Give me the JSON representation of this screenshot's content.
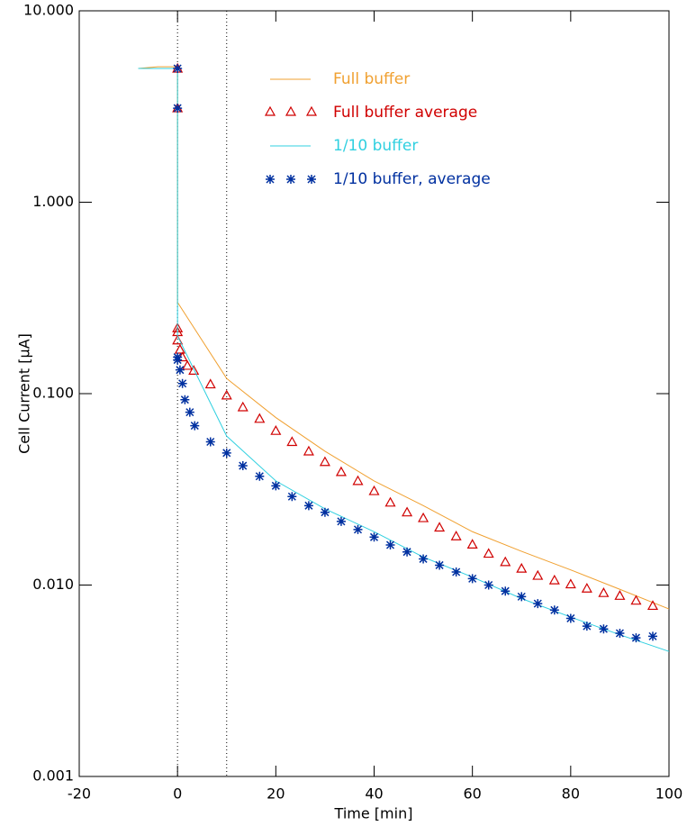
{
  "chart_data": {
    "type": "line",
    "xlabel": "Time [min]",
    "ylabel": "Cell Current [μA]",
    "log_y": true,
    "xlim": [
      -20,
      100
    ],
    "xticks": [
      -20,
      0,
      20,
      40,
      60,
      80,
      100
    ],
    "ylim": [
      0.001,
      10
    ],
    "yticks": [
      {
        "value": 10,
        "label": "10.000"
      },
      {
        "value": 1,
        "label": "1.000"
      },
      {
        "value": 0.1,
        "label": "0.100"
      },
      {
        "value": 0.01,
        "label": "0.010"
      },
      {
        "value": 0.001,
        "label": "0.001"
      }
    ],
    "reference_lines": [
      0,
      10
    ],
    "series": [
      {
        "name": "Full buffer",
        "color": "#f0a030",
        "marker": "line",
        "x": [
          -8,
          -4,
          0,
          0,
          10,
          20,
          30,
          40,
          50,
          60,
          70,
          80,
          90,
          100
        ],
        "values": [
          5.0,
          5.1,
          5.1,
          0.3,
          0.12,
          0.075,
          0.05,
          0.035,
          0.026,
          0.019,
          0.015,
          0.012,
          0.0095,
          0.0075
        ]
      },
      {
        "name": "Full buffer average",
        "color": "#d00000",
        "marker": "triangle",
        "x": [
          0,
          0,
          0,
          0,
          0,
          0.5,
          1,
          2,
          3.3,
          6.7,
          10,
          13.3,
          16.7,
          20,
          23.3,
          26.7,
          30,
          33.3,
          36.7,
          40,
          43.3,
          46.7,
          50,
          53.3,
          56.7,
          60,
          63.3,
          66.7,
          70,
          73.3,
          76.7,
          80,
          83.3,
          86.7,
          90,
          93.3,
          96.7
        ],
        "values": [
          5.0,
          3.1,
          0.22,
          0.21,
          0.19,
          0.17,
          0.155,
          0.14,
          0.132,
          0.112,
          0.098,
          0.085,
          0.074,
          0.064,
          0.056,
          0.05,
          0.044,
          0.039,
          0.035,
          0.031,
          0.027,
          0.024,
          0.0224,
          0.02,
          0.018,
          0.0163,
          0.0146,
          0.0132,
          0.0122,
          0.0112,
          0.0106,
          0.0101,
          0.0096,
          0.0091,
          0.0088,
          0.0083,
          0.0078
        ]
      },
      {
        "name": "1/10 buffer",
        "color": "#30d0e0",
        "marker": "line",
        "x": [
          -8,
          -4,
          0,
          0,
          10,
          20,
          30,
          40,
          50,
          60,
          70,
          80,
          90,
          100
        ],
        "values": [
          5.0,
          5.0,
          5.0,
          0.2,
          0.06,
          0.035,
          0.025,
          0.019,
          0.014,
          0.011,
          0.0085,
          0.0068,
          0.0055,
          0.0045
        ]
      },
      {
        "name": "1/10 buffer, average",
        "color": "#0030a0",
        "marker": "asterisk",
        "x": [
          0,
          0,
          0,
          0,
          0.5,
          1,
          1.5,
          2.5,
          3.5,
          6.7,
          10,
          13.3,
          16.7,
          20,
          23.3,
          26.7,
          30,
          33.3,
          36.7,
          40,
          43.3,
          46.7,
          50,
          53.3,
          56.7,
          60,
          63.3,
          66.7,
          70,
          73.3,
          76.7,
          80,
          83.3,
          86.7,
          90,
          93.3,
          96.7
        ],
        "values": [
          5.0,
          3.1,
          0.155,
          0.15,
          0.133,
          0.113,
          0.093,
          0.08,
          0.068,
          0.056,
          0.049,
          0.042,
          0.037,
          0.033,
          0.029,
          0.026,
          0.024,
          0.0215,
          0.0195,
          0.0178,
          0.0162,
          0.0149,
          0.0137,
          0.0127,
          0.0117,
          0.0108,
          0.01,
          0.0093,
          0.0087,
          0.008,
          0.0074,
          0.0067,
          0.0061,
          0.0059,
          0.0056,
          0.0053,
          0.0054
        ]
      }
    ]
  }
}
